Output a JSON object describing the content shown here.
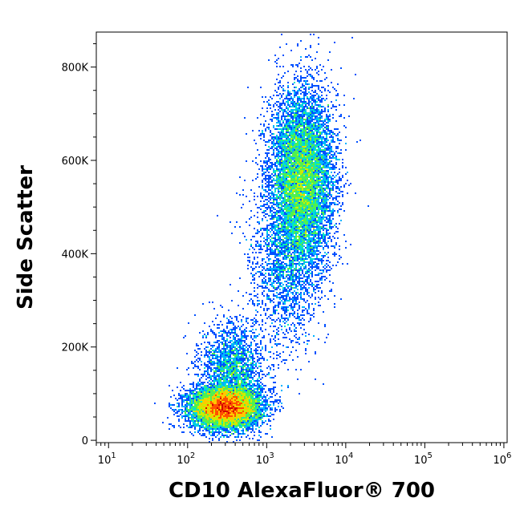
{
  "chart_data": {
    "type": "scatter",
    "subtype": "flow-cytometry-density-dot-plot",
    "title": "",
    "xlabel": "CD10 AlexaFluor® 700",
    "ylabel": "Side Scatter",
    "x_scale": "log",
    "y_scale": "linear",
    "xlim": [
      7,
      1100000
    ],
    "ylim": [
      -5000,
      875000
    ],
    "x_ticks": [
      {
        "value": 10,
        "base": "10",
        "exp": "1"
      },
      {
        "value": 100,
        "base": "10",
        "exp": "2"
      },
      {
        "value": 1000,
        "base": "10",
        "exp": "3"
      },
      {
        "value": 10000,
        "base": "10",
        "exp": "4"
      },
      {
        "value": 100000,
        "base": "10",
        "exp": "5"
      },
      {
        "value": 1000000,
        "base": "10",
        "exp": "6"
      }
    ],
    "y_ticks": [
      {
        "value": 0,
        "label": "0"
      },
      {
        "value": 200000,
        "label": "200K"
      },
      {
        "value": 400000,
        "label": "400K"
      },
      {
        "value": 600000,
        "label": "600K"
      },
      {
        "value": 800000,
        "label": "800K"
      }
    ],
    "grid": false,
    "legend": "none",
    "color_scale": [
      "#0000c8",
      "#0050ff",
      "#00b4ff",
      "#00e6c8",
      "#50f050",
      "#c8f000",
      "#ffc800",
      "#ff5000",
      "#d20000"
    ],
    "populations": [
      {
        "center_x": 300,
        "center_y": 70000,
        "spread_log_x": 0.22,
        "spread_y": 22000,
        "count": 9000
      },
      {
        "center_x": 380,
        "center_y": 150000,
        "spread_log_x": 0.2,
        "spread_y": 50000,
        "count": 2200
      },
      {
        "center_x": 2800,
        "center_y": 560000,
        "spread_log_x": 0.2,
        "spread_y": 95000,
        "count": 9000
      },
      {
        "center_x": 1700,
        "center_y": 380000,
        "spread_log_x": 0.22,
        "spread_y": 90000,
        "count": 1800
      }
    ]
  }
}
